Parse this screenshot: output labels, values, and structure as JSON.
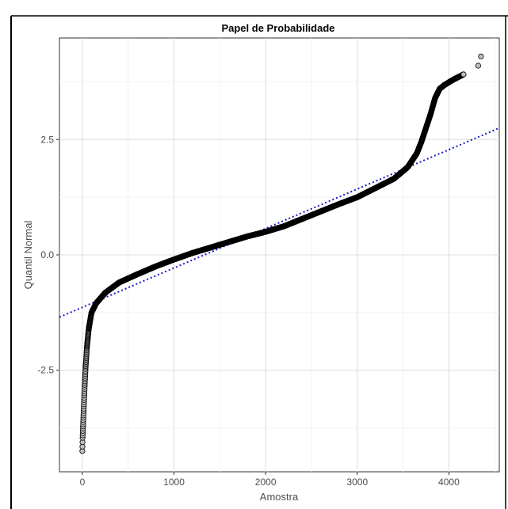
{
  "chart_data": {
    "type": "scatter",
    "title": "Papel de Probabilidade",
    "xlabel": "Amostra",
    "ylabel": "Quantil Normal",
    "xlim": [
      -250,
      4550
    ],
    "ylim": [
      -4.7,
      4.7
    ],
    "x_ticks": [
      {
        "value": 0,
        "label": "0"
      },
      {
        "value": 1000,
        "label": "1000"
      },
      {
        "value": 2000,
        "label": "2000"
      },
      {
        "value": 3000,
        "label": "3000"
      },
      {
        "value": 4000,
        "label": "4000"
      }
    ],
    "y_ticks": [
      {
        "value": -2.5,
        "label": "-2.5"
      },
      {
        "value": 0.0,
        "label": "0.0"
      },
      {
        "value": 2.5,
        "label": "2.5"
      }
    ],
    "grid": true,
    "legend": "none",
    "n_points": 4350,
    "point_color": "#000000",
    "point_fill": "#bfbfbf",
    "reference_line": {
      "style": "dotted",
      "color": "#1a1acc",
      "x": [
        -250,
        4550
      ],
      "y": [
        -1.35,
        2.75
      ]
    },
    "series": [
      {
        "points": [
          [
            0,
            -4.25
          ],
          [
            2,
            -4.05
          ],
          [
            3,
            -3.95
          ],
          [
            5,
            -3.85
          ],
          [
            8,
            -3.7
          ],
          [
            12,
            -3.5
          ],
          [
            18,
            -3.2
          ],
          [
            25,
            -2.85
          ],
          [
            35,
            -2.45
          ],
          [
            50,
            -2.0
          ],
          [
            70,
            -1.6
          ],
          [
            100,
            -1.25
          ],
          [
            150,
            -1.05
          ],
          [
            250,
            -0.82
          ],
          [
            400,
            -0.6
          ],
          [
            600,
            -0.42
          ],
          [
            800,
            -0.25
          ],
          [
            1000,
            -0.1
          ],
          [
            1200,
            0.04
          ],
          [
            1400,
            0.16
          ],
          [
            1600,
            0.28
          ],
          [
            1800,
            0.4
          ],
          [
            2000,
            0.5
          ],
          [
            2200,
            0.62
          ],
          [
            2400,
            0.78
          ],
          [
            2600,
            0.94
          ],
          [
            2800,
            1.1
          ],
          [
            3000,
            1.25
          ],
          [
            3200,
            1.45
          ],
          [
            3400,
            1.65
          ],
          [
            3550,
            1.9
          ],
          [
            3650,
            2.2
          ],
          [
            3700,
            2.45
          ],
          [
            3750,
            2.75
          ],
          [
            3800,
            3.05
          ],
          [
            3850,
            3.4
          ],
          [
            3900,
            3.6
          ],
          [
            3950,
            3.68
          ],
          [
            4000,
            3.74
          ],
          [
            4050,
            3.8
          ],
          [
            4100,
            3.85
          ],
          [
            4150,
            3.9
          ],
          [
            4320,
            4.1
          ],
          [
            4350,
            4.3
          ]
        ]
      }
    ]
  }
}
